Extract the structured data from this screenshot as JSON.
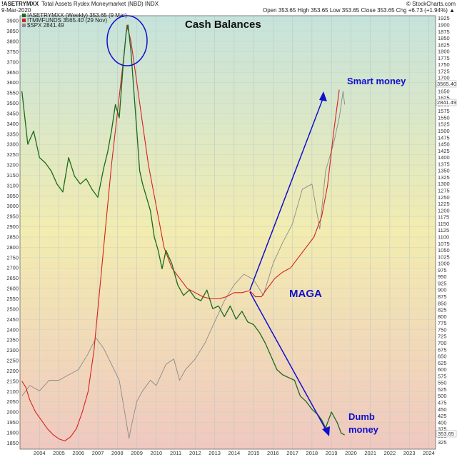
{
  "header": {
    "symbol": "!ASETRYMXX",
    "description": "Total Assets Rydex Moneymarket (NBD)  INDX",
    "date": "9-Mar-2020",
    "ohlc": "Open 353.65  High 353.65  Low 353.65  Close 353.65  Chg +6.73 (+1.94%) ▲",
    "brand": "© StockCharts.com"
  },
  "legend": [
    {
      "text": "!ASETRYMXX (Weekly) 353.65 (9 Mar)",
      "color": "#1a6b1a"
    },
    {
      "text": "!TMMFUNDS 3565.40 (29 Nov)",
      "color": "#d62020"
    },
    {
      "text": "$SPX 2841.49",
      "color": "#8a8a8a"
    }
  ],
  "annotations": {
    "title": "Cash Balances",
    "smart": "Smart money",
    "maga": "MAGA",
    "dumb_line1": "Dumb",
    "dumb_line2": "money"
  },
  "right_tags": {
    "tmmfunds": "3565.40",
    "spx": "2841.49",
    "rydex": "353.65"
  },
  "colors": {
    "rydex": "#1a6b1a",
    "tmmfunds": "#d62020",
    "spx": "#8a8a8a",
    "annotation": "#1010cc",
    "bg_top": "#c5e3dc",
    "bg_mid": "#f2ecb0",
    "bg_bottom": "#f0c8c0"
  },
  "chart_data": {
    "type": "line",
    "x_ticks": [
      "2004",
      "2005",
      "2006",
      "2007",
      "2008",
      "2009",
      "2010",
      "2011",
      "2012",
      "2013",
      "2014",
      "2015",
      "2016",
      "2017",
      "2018",
      "2019",
      "2020",
      "2021",
      "2022",
      "2023",
      "2024"
    ],
    "left_axis": {
      "ticks": [
        1850,
        1900,
        1950,
        2000,
        2050,
        2100,
        2150,
        2200,
        2250,
        2300,
        2350,
        2400,
        2450,
        2500,
        2550,
        2600,
        2650,
        2700,
        2750,
        2800,
        2850,
        2900,
        2950,
        3000,
        3050,
        3100,
        3150,
        3200,
        3250,
        3300,
        3350,
        3400,
        3450,
        3500,
        3550,
        3600,
        3650,
        3700,
        3750,
        3800,
        3850,
        3900
      ],
      "range": [
        1820,
        3925
      ]
    },
    "right_axis": {
      "ticks": [
        325,
        350,
        375,
        400,
        425,
        450,
        475,
        500,
        525,
        550,
        575,
        600,
        625,
        650,
        675,
        700,
        725,
        750,
        775,
        800,
        825,
        850,
        875,
        900,
        925,
        950,
        975,
        1000,
        1025,
        1050,
        1075,
        1100,
        1125,
        1150,
        1175,
        1200,
        1225,
        1250,
        1275,
        1300,
        1325,
        1350,
        1375,
        1400,
        1425,
        1450,
        1475,
        1500,
        1525,
        1550,
        1575,
        1600,
        1625,
        1650,
        1675,
        1700,
        1725,
        1750,
        1775,
        1800,
        1825,
        1850,
        1875,
        1900,
        1925
      ],
      "range": [
        300,
        1935
      ]
    },
    "series": [
      {
        "name": "!ASETRYMXX (Weekly)",
        "axis": "right",
        "x": [
          2003.6,
          2003.9,
          2004.2,
          2004.5,
          2004.8,
          2005.1,
          2005.4,
          2005.7,
          2006.0,
          2006.3,
          2006.6,
          2006.9,
          2007.2,
          2007.5,
          2007.8,
          2008.0,
          2008.2,
          2008.4,
          2008.6,
          2008.8,
          2008.95,
          2009.05,
          2009.2,
          2009.35,
          2009.5,
          2009.65,
          2009.8,
          2010.0,
          2010.2,
          2010.4,
          2010.6,
          2010.8,
          2011.0,
          2011.3,
          2011.6,
          2011.9,
          2012.2,
          2012.5,
          2012.8,
          2013.1,
          2013.4,
          2013.7,
          2014.0,
          2014.3,
          2014.6,
          2014.9,
          2015.2,
          2015.5,
          2015.8,
          2016.1,
          2016.4,
          2016.7,
          2017.0,
          2017.3,
          2017.6,
          2017.9,
          2018.2,
          2018.5,
          2018.8,
          2019.0,
          2019.2,
          2019.5,
          2019.8,
          2020.0,
          2020.18
        ],
        "values": [
          1650,
          1450,
          1500,
          1400,
          1380,
          1350,
          1300,
          1270,
          1400,
          1330,
          1300,
          1320,
          1280,
          1250,
          1360,
          1420,
          1500,
          1600,
          1550,
          1750,
          1870,
          1900,
          1800,
          1650,
          1500,
          1350,
          1300,
          1250,
          1200,
          1100,
          1050,
          980,
          1050,
          1000,
          920,
          880,
          900,
          870,
          860,
          900,
          830,
          840,
          800,
          840,
          790,
          820,
          780,
          770,
          740,
          700,
          650,
          600,
          580,
          570,
          560,
          500,
          480,
          450,
          430,
          410,
          380,
          440,
          400,
          360,
          353.65
        ]
      },
      {
        "name": "!TMMFUNDS",
        "axis": "left",
        "x": [
          2003.6,
          2003.8,
          2004.0,
          2004.3,
          2004.6,
          2004.9,
          2005.2,
          2005.5,
          2005.8,
          2006.1,
          2006.4,
          2006.7,
          2007.0,
          2007.3,
          2007.6,
          2007.9,
          2008.2,
          2008.5,
          2008.8,
          2009.0,
          2009.2,
          2009.5,
          2009.8,
          2010.1,
          2010.5,
          2010.9,
          2011.3,
          2011.7,
          2012.1,
          2012.5,
          2012.9,
          2013.3,
          2013.7,
          2014.1,
          2014.5,
          2014.9,
          2015.3,
          2015.6,
          2015.9,
          2016.2,
          2016.6,
          2017.0,
          2017.4,
          2017.8,
          2018.2,
          2018.6,
          2019.0,
          2019.3,
          2019.6,
          2019.9
        ],
        "values": [
          2150,
          2120,
          2060,
          2000,
          1960,
          1920,
          1890,
          1870,
          1860,
          1880,
          1920,
          2000,
          2100,
          2300,
          2600,
          2900,
          3200,
          3450,
          3700,
          3880,
          3800,
          3600,
          3400,
          3200,
          3000,
          2800,
          2700,
          2650,
          2600,
          2580,
          2560,
          2550,
          2550,
          2560,
          2580,
          2580,
          2590,
          2560,
          2560,
          2600,
          2650,
          2680,
          2700,
          2750,
          2800,
          2850,
          2950,
          3100,
          3350,
          3565.4
        ]
      },
      {
        "name": "$SPX",
        "axis": "right",
        "x": [
          2003.6,
          2004.0,
          2004.5,
          2005.0,
          2005.5,
          2006.0,
          2006.5,
          2007.0,
          2007.4,
          2007.8,
          2008.2,
          2008.6,
          2008.9,
          2009.1,
          2009.2,
          2009.5,
          2009.8,
          2010.2,
          2010.5,
          2011.0,
          2011.4,
          2011.7,
          2012.0,
          2012.5,
          2013.0,
          2013.5,
          2014.0,
          2014.5,
          2015.0,
          2015.5,
          2016.0,
          2016.5,
          2017.0,
          2017.5,
          2018.0,
          2018.5,
          2018.9,
          2019.2,
          2019.6,
          2019.9,
          2020.1,
          2020.18
        ],
        "values": [
          500,
          540,
          520,
          560,
          560,
          580,
          600,
          660,
          720,
          680,
          620,
          560,
          430,
          340,
          380,
          480,
          520,
          560,
          540,
          620,
          640,
          560,
          600,
          640,
          700,
          780,
          860,
          920,
          960,
          940,
          880,
          1000,
          1080,
          1150,
          1280,
          1300,
          1130,
          1350,
          1450,
          1550,
          1650,
          1600
        ]
      }
    ]
  }
}
